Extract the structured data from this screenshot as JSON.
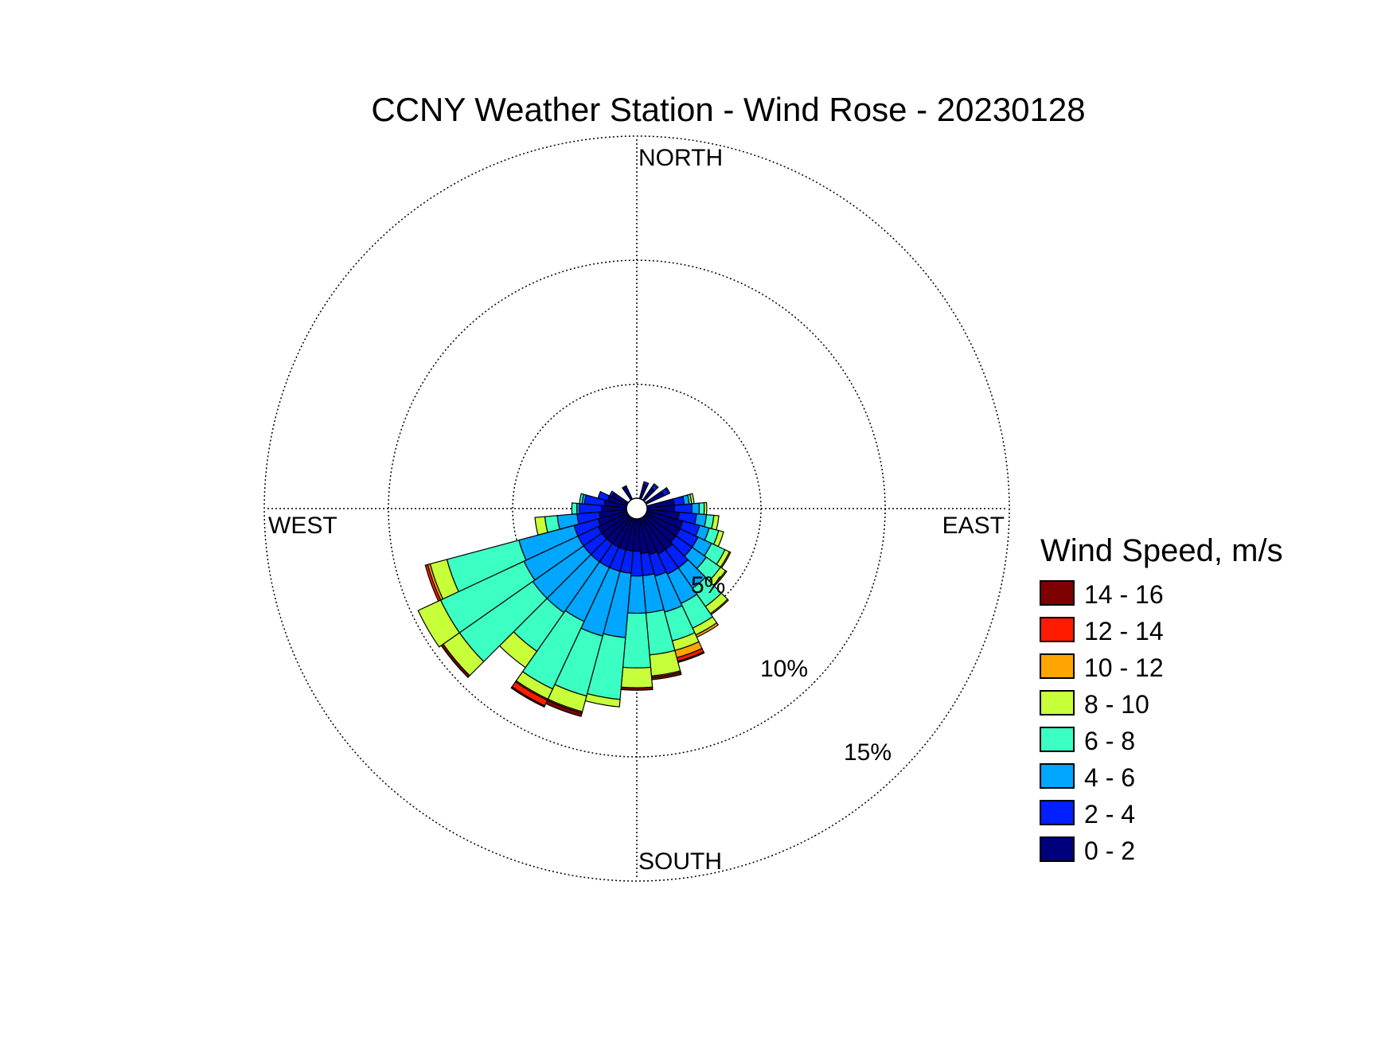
{
  "chart_data": {
    "type": "wind-rose",
    "title": "CCNY Weather Station - Wind Rose - 20230128",
    "direction_labels": {
      "north": "NORTH",
      "east": "EAST",
      "south": "SOUTH",
      "west": "WEST"
    },
    "ring_values": [
      5,
      10,
      15
    ],
    "ring_labels": [
      "5%",
      "10%",
      "15%"
    ],
    "legend_title": "Wind Speed, m/s",
    "bins": [
      {
        "label": "0 - 2",
        "color": "#00007f"
      },
      {
        "label": "2 - 4",
        "color": "#0020ff"
      },
      {
        "label": "4 - 6",
        "color": "#00a6ff"
      },
      {
        "label": "6 - 8",
        "color": "#3cffc3"
      },
      {
        "label": "8 - 10",
        "color": "#c7ff38"
      },
      {
        "label": "10 - 12",
        "color": "#ffa400"
      },
      {
        "label": "12 - 14",
        "color": "#ff1b00"
      },
      {
        "label": "14 - 16",
        "color": "#7f0000"
      }
    ],
    "sector_width_deg": 10,
    "sectors": [
      {
        "direction": 110,
        "cumulative": [
          1.5,
          2.2,
          2.6,
          3.0,
          3.2,
          3.2,
          3.2,
          3.2
        ]
      },
      {
        "direction": 120,
        "cumulative": [
          1.5,
          2.3,
          2.9,
          3.5,
          3.7,
          3.75,
          3.75,
          3.75
        ]
      },
      {
        "direction": 130,
        "cumulative": [
          1.5,
          2.3,
          3.0,
          3.7,
          3.95,
          4.0,
          4.0,
          4.0
        ]
      },
      {
        "direction": 140,
        "cumulative": [
          1.6,
          2.5,
          3.5,
          4.4,
          4.75,
          4.8,
          4.8,
          4.8
        ]
      },
      {
        "direction": 150,
        "cumulative": [
          1.6,
          2.5,
          3.8,
          4.9,
          5.2,
          5.3,
          5.3,
          5.3
        ]
      },
      {
        "direction": 160,
        "cumulative": [
          1.5,
          2.4,
          3.9,
          5.1,
          5.5,
          5.8,
          5.95,
          6.0
        ]
      },
      {
        "direction": 170,
        "cumulative": [
          1.4,
          2.3,
          3.8,
          5.5,
          6.35,
          6.4,
          6.4,
          6.5
        ]
      },
      {
        "direction": 180,
        "cumulative": [
          1.3,
          2.3,
          3.8,
          6.0,
          6.8,
          6.8,
          6.8,
          6.9
        ]
      },
      {
        "direction": 190,
        "cumulative": [
          1.3,
          2.2,
          4.8,
          7.3,
          7.6,
          7.6,
          7.6,
          7.6
        ]
      },
      {
        "direction": 200,
        "cumulative": [
          1.3,
          2.2,
          4.9,
          7.4,
          8.05,
          8.1,
          8.1,
          8.25
        ]
      },
      {
        "direction": 210,
        "cumulative": [
          1.3,
          2.2,
          4.6,
          7.6,
          8.05,
          8.1,
          8.35,
          8.4
        ]
      },
      {
        "direction": 220,
        "cumulative": [
          1.3,
          2.2,
          4.7,
          6.6,
          7.4,
          7.4,
          7.4,
          7.4
        ]
      },
      {
        "direction": 230,
        "cumulative": [
          1.3,
          2.2,
          4.7,
          8.3,
          9.1,
          9.1,
          9.1,
          9.2
        ]
      },
      {
        "direction": 240,
        "cumulative": [
          1.3,
          2.2,
          4.6,
          8.3,
          9.3,
          9.3,
          9.3,
          9.3
        ]
      },
      {
        "direction": 250,
        "cumulative": [
          1.2,
          2.2,
          4.5,
          7.5,
          8.2,
          8.3,
          8.4,
          8.4
        ]
      },
      {
        "direction": 260,
        "cumulative": [
          1.1,
          2.0,
          2.8,
          3.3,
          3.7,
          3.7,
          3.7,
          3.7
        ]
      },
      {
        "direction": 270,
        "cumulative": [
          1.0,
          1.9,
          2.0,
          2.2,
          2.2,
          2.2,
          2.2,
          2.2
        ]
      },
      {
        "direction": 280,
        "cumulative": [
          0.9,
          1.7,
          1.8,
          1.9,
          1.9,
          1.9,
          1.9,
          1.9
        ]
      },
      {
        "direction": 290,
        "cumulative": [
          0.8,
          1.2,
          1.2,
          1.2,
          1.2,
          1.2,
          1.2,
          1.2
        ]
      },
      {
        "direction": 300,
        "cumulative": [
          0.7,
          0.8,
          0.8,
          0.8,
          0.8,
          0.8,
          0.8,
          0.8
        ]
      },
      {
        "direction": 330,
        "cumulative": [
          0.55,
          0.6,
          0.6,
          0.6,
          0.6,
          0.6,
          0.6,
          0.6
        ]
      },
      {
        "direction": 20,
        "cumulative": [
          0.6,
          0.7,
          0.7,
          0.7,
          0.7,
          0.7,
          0.7,
          0.7
        ]
      },
      {
        "direction": 40,
        "cumulative": [
          0.6,
          0.75,
          0.8,
          0.8,
          0.8,
          0.8,
          0.8,
          0.8
        ]
      },
      {
        "direction": 60,
        "cumulative": [
          0.8,
          1.0,
          1.05,
          1.05,
          1.05,
          1.05,
          1.05,
          1.05
        ]
      },
      {
        "direction": 80,
        "cumulative": [
          1.1,
          1.5,
          1.7,
          1.8,
          1.9,
          1.9,
          1.9,
          1.9
        ]
      },
      {
        "direction": 90,
        "cumulative": [
          1.1,
          1.8,
          2.1,
          2.3,
          2.4,
          2.4,
          2.4,
          2.4
        ]
      },
      {
        "direction": 100,
        "cumulative": [
          1.3,
          2.0,
          2.4,
          2.7,
          2.9,
          2.9,
          2.9,
          2.9
        ]
      }
    ]
  }
}
